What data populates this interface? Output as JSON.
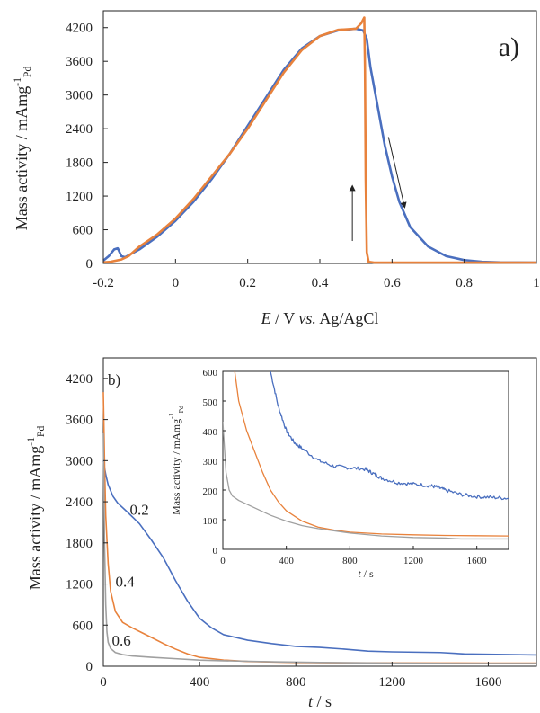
{
  "chart_data": [
    {
      "type": "line",
      "panel_label": "a)",
      "xlabel": {
        "italic": "E",
        "mid": " / V ",
        "italic2": "vs.",
        "tail": " Ag/AgCl"
      },
      "ylabel": {
        "main": "Mass activity / mAmg",
        "sub": "Pd",
        "sup": "-1"
      },
      "xlim": [
        -0.2,
        1.0
      ],
      "ylim": [
        0,
        4500
      ],
      "xticks": [
        -0.2,
        0,
        0.2,
        0.4,
        0.6,
        0.8,
        1.0
      ],
      "xtick_labels": [
        "-0.2",
        "0",
        "0.2",
        "0.4",
        "0.6",
        "0.8",
        "1"
      ],
      "yticks": [
        0,
        600,
        1200,
        1800,
        2400,
        3000,
        3600,
        4200
      ],
      "ytick_labels": [
        "0",
        "600",
        "1200",
        "1800",
        "2400",
        "3000",
        "3600",
        "4200"
      ],
      "grid": false,
      "colors": {
        "forward": "#4a6fbf",
        "backward": "#e8823c",
        "axis": "#222222"
      },
      "series": [
        {
          "id": "forward",
          "color": "#4a6fbf",
          "points": [
            [
              -0.2,
              50
            ],
            [
              -0.185,
              130
            ],
            [
              -0.17,
              250
            ],
            [
              -0.16,
              270
            ],
            [
              -0.15,
              130
            ],
            [
              -0.14,
              110
            ],
            [
              -0.1,
              250
            ],
            [
              -0.05,
              480
            ],
            [
              0,
              760
            ],
            [
              0.05,
              1100
            ],
            [
              0.1,
              1500
            ],
            [
              0.15,
              1950
            ],
            [
              0.2,
              2450
            ],
            [
              0.25,
              2950
            ],
            [
              0.3,
              3450
            ],
            [
              0.35,
              3830
            ],
            [
              0.4,
              4050
            ],
            [
              0.45,
              4150
            ],
            [
              0.5,
              4180
            ],
            [
              0.52,
              4150
            ],
            [
              0.53,
              4000
            ],
            [
              0.54,
              3500
            ],
            [
              0.56,
              2800
            ],
            [
              0.58,
              2100
            ],
            [
              0.6,
              1550
            ],
            [
              0.62,
              1100
            ],
            [
              0.65,
              650
            ],
            [
              0.7,
              300
            ],
            [
              0.75,
              130
            ],
            [
              0.8,
              60
            ],
            [
              0.85,
              30
            ],
            [
              0.9,
              20
            ],
            [
              1.0,
              15
            ]
          ]
        },
        {
          "id": "backward",
          "color": "#e8823c",
          "points": [
            [
              1.0,
              15
            ],
            [
              0.8,
              15
            ],
            [
              0.6,
              15
            ],
            [
              0.55,
              15
            ],
            [
              0.535,
              30
            ],
            [
              0.53,
              200
            ],
            [
              0.527,
              1500
            ],
            [
              0.525,
              3500
            ],
            [
              0.523,
              4380
            ],
            [
              0.515,
              4280
            ],
            [
              0.5,
              4180
            ],
            [
              0.45,
              4160
            ],
            [
              0.4,
              4050
            ],
            [
              0.35,
              3800
            ],
            [
              0.3,
              3400
            ],
            [
              0.25,
              2900
            ],
            [
              0.2,
              2400
            ],
            [
              0.15,
              1950
            ],
            [
              0.1,
              1550
            ],
            [
              0.05,
              1150
            ],
            [
              0,
              800
            ],
            [
              -0.05,
              520
            ],
            [
              -0.1,
              300
            ],
            [
              -0.13,
              130
            ],
            [
              -0.15,
              70
            ],
            [
              -0.18,
              30
            ],
            [
              -0.2,
              20
            ]
          ]
        }
      ],
      "arrows": [
        {
          "from": [
            0.49,
            400
          ],
          "to": [
            0.49,
            1380
          ],
          "color": "#222222"
        },
        {
          "from": [
            0.59,
            2250
          ],
          "to": [
            0.635,
            1000
          ],
          "color": "#222222"
        }
      ]
    },
    {
      "type": "line",
      "panel_label": "b)",
      "xlabel": {
        "italic": "t",
        "tail": " / s"
      },
      "ylabel": {
        "main": "Mass activity / mAmg",
        "sub": "Pd",
        "sup": "-1"
      },
      "xlim": [
        0,
        1800
      ],
      "ylim": [
        0,
        4500
      ],
      "xticks": [
        0,
        400,
        800,
        1200,
        1600
      ],
      "xtick_labels": [
        "0",
        "400",
        "800",
        "1200",
        "1600"
      ],
      "yticks": [
        0,
        600,
        1200,
        1800,
        2400,
        3000,
        3600,
        4200
      ],
      "ytick_labels": [
        "0",
        "600",
        "1200",
        "1800",
        "2400",
        "3000",
        "3600",
        "4200"
      ],
      "grid": false,
      "curve_labels": [
        {
          "text": "0.2",
          "at": [
            150,
            2210
          ]
        },
        {
          "text": "0.4",
          "at": [
            90,
            1160
          ]
        },
        {
          "text": "0.6",
          "at": [
            75,
            300
          ]
        }
      ],
      "series": [
        {
          "id": "0.2",
          "color": "#4a6fbf",
          "points": [
            [
              0,
              3000
            ],
            [
              10,
              2800
            ],
            [
              20,
              2650
            ],
            [
              40,
              2480
            ],
            [
              60,
              2380
            ],
            [
              100,
              2250
            ],
            [
              150,
              2080
            ],
            [
              200,
              1840
            ],
            [
              250,
              1580
            ],
            [
              300,
              1250
            ],
            [
              350,
              950
            ],
            [
              400,
              700
            ],
            [
              450,
              560
            ],
            [
              500,
              460
            ],
            [
              600,
              380
            ],
            [
              700,
              330
            ],
            [
              800,
              290
            ],
            [
              900,
              275
            ],
            [
              1000,
              250
            ],
            [
              1100,
              220
            ],
            [
              1200,
              210
            ],
            [
              1300,
              205
            ],
            [
              1400,
              200
            ],
            [
              1500,
              180
            ],
            [
              1600,
              175
            ],
            [
              1700,
              170
            ],
            [
              1800,
              165
            ]
          ]
        },
        {
          "id": "0.4",
          "color": "#e8823c",
          "points": [
            [
              0,
              4000
            ],
            [
              5,
              3000
            ],
            [
              10,
              2200
            ],
            [
              20,
              1500
            ],
            [
              30,
              1100
            ],
            [
              50,
              800
            ],
            [
              80,
              640
            ],
            [
              120,
              560
            ],
            [
              160,
              490
            ],
            [
              200,
              420
            ],
            [
              250,
              330
            ],
            [
              300,
              250
            ],
            [
              350,
              180
            ],
            [
              400,
              130
            ],
            [
              500,
              90
            ],
            [
              600,
              70
            ],
            [
              800,
              55
            ],
            [
              1000,
              50
            ],
            [
              1200,
              48
            ],
            [
              1400,
              47
            ],
            [
              1600,
              46
            ],
            [
              1800,
              45
            ]
          ]
        },
        {
          "id": "0.6",
          "color": "#a0a0a0",
          "points": [
            [
              0,
              3400
            ],
            [
              5,
              1800
            ],
            [
              10,
              900
            ],
            [
              15,
              500
            ],
            [
              20,
              350
            ],
            [
              30,
              260
            ],
            [
              50,
              200
            ],
            [
              80,
              170
            ],
            [
              120,
              150
            ],
            [
              200,
              130
            ],
            [
              300,
              110
            ],
            [
              400,
              90
            ],
            [
              500,
              80
            ],
            [
              700,
              65
            ],
            [
              900,
              55
            ],
            [
              1200,
              45
            ],
            [
              1500,
              40
            ],
            [
              1800,
              40
            ]
          ]
        }
      ],
      "inset": {
        "ylabel": {
          "main": "Mass activity / mAmg",
          "sub": "Pd",
          "sup": "-1"
        },
        "xlabel": {
          "italic": "t",
          "tail": " / s"
        },
        "xlim": [
          0,
          1800
        ],
        "ylim": [
          0,
          600
        ],
        "xticks": [
          0,
          400,
          800,
          1200,
          1600
        ],
        "xtick_labels": [
          "0",
          "400",
          "800",
          "1200",
          "1600"
        ],
        "yticks": [
          0,
          100,
          200,
          300,
          400,
          500,
          600
        ],
        "ytick_labels": [
          "0",
          "100",
          "200",
          "300",
          "400",
          "500",
          "600"
        ],
        "series": [
          {
            "id": "0.2",
            "color": "#4a6fbf",
            "noise": 6,
            "points": [
              [
                300,
                600
              ],
              [
                350,
                480
              ],
              [
                400,
                400
              ],
              [
                450,
                360
              ],
              [
                500,
                340
              ],
              [
                600,
                300
              ],
              [
                700,
                280
              ],
              [
                800,
                275
              ],
              [
                900,
                270
              ],
              [
                950,
                255
              ],
              [
                1000,
                240
              ],
              [
                1100,
                225
              ],
              [
                1200,
                220
              ],
              [
                1300,
                215
              ],
              [
                1350,
                210
              ],
              [
                1400,
                200
              ],
              [
                1500,
                185
              ],
              [
                1600,
                178
              ],
              [
                1700,
                175
              ],
              [
                1800,
                172
              ]
            ]
          },
          {
            "id": "0.4",
            "color": "#e8823c",
            "points": [
              [
                75,
                600
              ],
              [
                100,
                500
              ],
              [
                150,
                400
              ],
              [
                200,
                330
              ],
              [
                250,
                260
              ],
              [
                300,
                200
              ],
              [
                350,
                160
              ],
              [
                400,
                130
              ],
              [
                500,
                95
              ],
              [
                600,
                75
              ],
              [
                700,
                65
              ],
              [
                800,
                58
              ],
              [
                1000,
                52
              ],
              [
                1200,
                49
              ],
              [
                1400,
                47
              ],
              [
                1600,
                46
              ],
              [
                1800,
                45
              ]
            ]
          },
          {
            "id": "0.6",
            "color": "#a0a0a0",
            "points": [
              [
                0,
                430
              ],
              [
                20,
                260
              ],
              [
                40,
                200
              ],
              [
                60,
                180
              ],
              [
                100,
                165
              ],
              [
                200,
                140
              ],
              [
                300,
                115
              ],
              [
                400,
                95
              ],
              [
                500,
                80
              ],
              [
                600,
                70
              ],
              [
                800,
                55
              ],
              [
                1000,
                45
              ],
              [
                1200,
                40
              ],
              [
                1400,
                38
              ],
              [
                1500,
                35
              ],
              [
                1600,
                35
              ],
              [
                1700,
                35
              ],
              [
                1800,
                35
              ]
            ]
          }
        ]
      }
    }
  ]
}
